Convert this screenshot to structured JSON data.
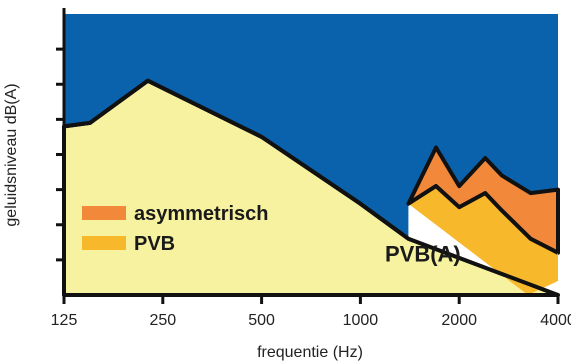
{
  "chart_data": {
    "type": "area",
    "xlabel": "frequentie (Hz)",
    "ylabel": "geluidsniveau dB(A)",
    "x_scale": "log2",
    "x_ticks": [
      125,
      250,
      500,
      1000,
      2000,
      4000
    ],
    "x_tick_labels": [
      "125",
      "250",
      "500",
      "1000",
      "2000",
      "4000"
    ],
    "ylim": [
      0,
      8
    ],
    "grid": false,
    "legend_position": "left-center",
    "colors": {
      "background": "#0a62ad",
      "noise": "#f7f2a0",
      "asymmetrisch": "#f2893a",
      "pvb": "#f7b92b",
      "pvb_a": "#ffffff",
      "outline": "#111111"
    },
    "series": [
      {
        "name": "noise-spectrum",
        "x": [
          125,
          150,
          225,
          500,
          1000,
          1400,
          4000
        ],
        "y": [
          4.8,
          4.9,
          6.1,
          4.5,
          2.6,
          1.6,
          0
        ]
      },
      {
        "name": "asymmetrisch",
        "x": [
          1400,
          1700,
          2000,
          2400,
          2700,
          3300,
          4000
        ],
        "y": [
          2.6,
          4.2,
          3.1,
          3.9,
          3.4,
          2.9,
          3.0
        ]
      },
      {
        "name": "PVB",
        "x": [
          1400,
          1700,
          2000,
          2400,
          2700,
          3300,
          4000
        ],
        "y": [
          2.6,
          3.1,
          2.5,
          2.9,
          2.4,
          1.6,
          1.2
        ]
      }
    ],
    "legend": [
      {
        "label": "asymmetrisch",
        "color": "#f2893a"
      },
      {
        "label": "PVB",
        "color": "#f7b92b"
      }
    ],
    "annotations": [
      {
        "text": "PVB(A)",
        "x": 1550,
        "y": 0.95
      }
    ]
  }
}
